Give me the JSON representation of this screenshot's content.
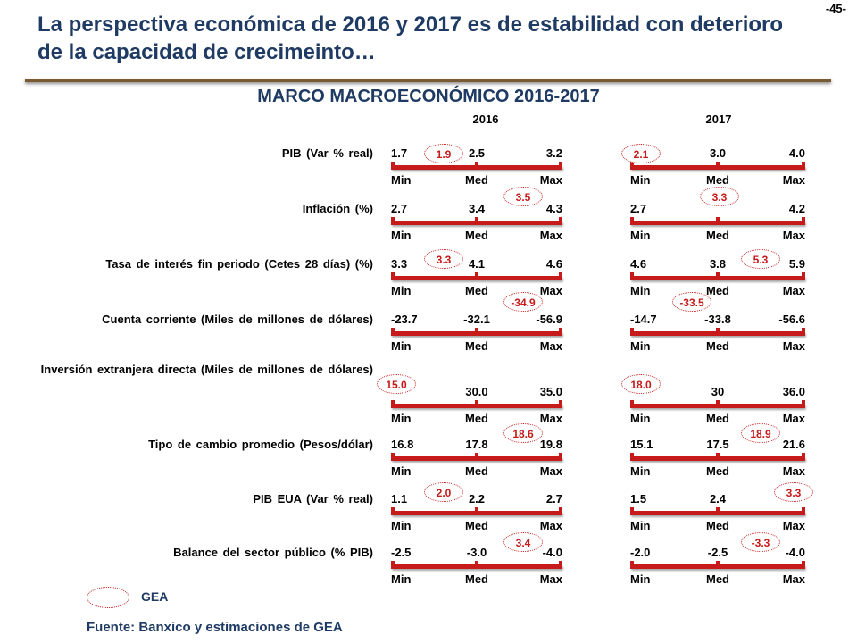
{
  "page_number": "-45-",
  "title": "La perspectiva económica de 2016 y 2017 es de estabilidad con deterioro de la capacidad de crecimeinto…",
  "subtitle": "MARCO MACROECONÓMICO 2016-2017",
  "years": [
    "2016",
    "2017"
  ],
  "range_labels": [
    "Min",
    "Med",
    "Max"
  ],
  "colors": {
    "title": "#1f3b64",
    "bar": "#c71a1a",
    "rule": "#7a5a35"
  },
  "rows": [
    {
      "label": "PIB (Var % real)",
      "y2016": {
        "min": "1.7",
        "med": "2.5",
        "max": "3.2",
        "gea": "1.9"
      },
      "y2017": {
        "min": "",
        "med": "3.0",
        "max": "4.0",
        "gea": "2.1"
      }
    },
    {
      "label": "Inflación (%)",
      "y2016": {
        "min": "2.7",
        "med": "3.4",
        "max": "4.3",
        "gea": "3.5"
      },
      "y2017": {
        "min": "2.7",
        "med": "",
        "max": "4.2",
        "gea": "3.3"
      }
    },
    {
      "label": "Tasa de interés fin periodo (Cetes 28 días) (%)",
      "y2016": {
        "min": "3.3",
        "med": "4.1",
        "max": "4.6",
        "gea": "3.3"
      },
      "y2017": {
        "min": "4.6",
        "med": "3.8",
        "max": "5.9",
        "gea": "5.3"
      }
    },
    {
      "label": "Cuenta corriente (Miles de millones de dólares)",
      "y2016": {
        "min": "-23.7",
        "med": "-32.1",
        "max": "-56.9",
        "gea": "-34.9"
      },
      "y2017": {
        "min": "-14.7",
        "med": "-33.8",
        "max": "-56.6",
        "gea": "-33.5"
      }
    },
    {
      "label": "Inversión extranjera directa (Miles de millones de dólares)",
      "y2016": {
        "min": "",
        "med": "30.0",
        "max": "35.0",
        "gea": "15.0"
      },
      "y2017": {
        "min": "",
        "med": "30",
        "max": "36.0",
        "gea": "18.0"
      }
    },
    {
      "label": "Tipo de cambio promedio (Pesos/dólar)",
      "y2016": {
        "min": "16.8",
        "med": "17.8",
        "max": "19.8",
        "gea": "18.6"
      },
      "y2017": {
        "min": "15.1",
        "med": "17.5",
        "max": "21.6",
        "gea": "18.9"
      }
    },
    {
      "label": "PIB EUA (Var % real)",
      "y2016": {
        "min": "1.1",
        "med": "2.2",
        "max": "2.7",
        "gea": "2.0"
      },
      "y2017": {
        "min": "1.5",
        "med": "2.4",
        "max": "",
        "gea": "3.3"
      }
    },
    {
      "label": "Balance del sector público (% PIB)",
      "y2016": {
        "min": "-2.5",
        "med": "-3.0",
        "max": "-4.0",
        "gea": "3.4"
      },
      "y2017": {
        "min": "-2.0",
        "med": "-2.5",
        "max": "-4.0",
        "gea": "-3.3"
      }
    }
  ],
  "legend": {
    "label": "GEA"
  },
  "source": "Fuente: Banxico y estimaciones de GEA"
}
